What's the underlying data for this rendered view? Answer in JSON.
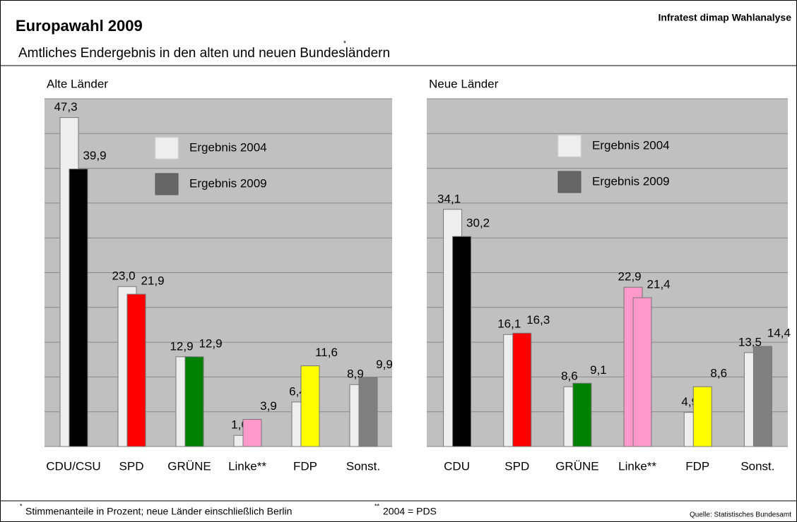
{
  "header": {
    "title": "Europawahl 2009",
    "source": "Infratest dimap Wahlanalyse",
    "subtitle": "Amtliches Endergebnis in den alten und neuen Bundesländern",
    "subtitle_mark": "*"
  },
  "footer": {
    "notes": [
      {
        "mark": "*",
        "text": "Stimmenanteile in Prozent; neue Länder einschließlich Berlin"
      },
      {
        "mark": "**",
        "text": "2004 = PDS"
      }
    ],
    "credit": "Quelle: Statistisches Bundesamt"
  },
  "chart_data": [
    {
      "type": "bar",
      "title": "Alte Länder",
      "categories": [
        "CDU/CSU",
        "SPD",
        "GRÜNE",
        "Linke**",
        "FDP",
        "Sonst."
      ],
      "series": [
        {
          "name": "Ergebnis 2004",
          "color": "#eeeeee",
          "colors": [
            "#eeeeee",
            "#eeeeee",
            "#eeeeee",
            "#eeeeee",
            "#eeeeee",
            "#eeeeee"
          ],
          "values": [
            47.3,
            23.0,
            12.9,
            1.6,
            6.4,
            8.9
          ],
          "value_labels": [
            "47,3",
            "23,0",
            "12,9",
            "1,6",
            "6,4",
            "8,9"
          ]
        },
        {
          "name": "Ergebnis 2009",
          "color": "#666666",
          "colors": [
            "#000000",
            "#ff0000",
            "#008000",
            "#ff99cc",
            "#ffff00",
            "#808080"
          ],
          "values": [
            39.9,
            21.9,
            12.9,
            3.9,
            11.6,
            9.9
          ],
          "value_labels": [
            "39,9",
            "21,9",
            "12,9",
            "3,9",
            "11,6",
            "9,9"
          ]
        }
      ],
      "ylim": [
        0,
        50
      ],
      "yticks": [
        0,
        5,
        10,
        15,
        20,
        25,
        30,
        35,
        40,
        45,
        50
      ],
      "grid": true
    },
    {
      "type": "bar",
      "title": "Neue Länder",
      "categories": [
        "CDU",
        "SPD",
        "GRÜNE",
        "Linke**",
        "FDP",
        "Sonst."
      ],
      "series": [
        {
          "name": "Ergebnis 2004",
          "color": "#eeeeee",
          "colors": [
            "#eeeeee",
            "#eeeeee",
            "#eeeeee",
            "#ff99cc",
            "#eeeeee",
            "#eeeeee"
          ],
          "values": [
            34.1,
            16.1,
            8.6,
            22.9,
            4.9,
            13.5
          ],
          "value_labels": [
            "34,1",
            "16,1",
            "8,6",
            "22,9",
            "4,9",
            "13,5"
          ]
        },
        {
          "name": "Ergebnis 2009",
          "color": "#666666",
          "colors": [
            "#000000",
            "#ff0000",
            "#008000",
            "#ff99cc",
            "#ffff00",
            "#808080"
          ],
          "values": [
            30.2,
            16.3,
            9.1,
            21.4,
            8.6,
            14.4
          ],
          "value_labels": [
            "30,2",
            "16,3",
            "9,1",
            "21,4",
            "8,6",
            "14,4"
          ]
        }
      ],
      "ylim": [
        0,
        50
      ],
      "yticks": [
        0,
        5,
        10,
        15,
        20,
        25,
        30,
        35,
        40,
        45,
        50
      ],
      "grid": true
    }
  ]
}
